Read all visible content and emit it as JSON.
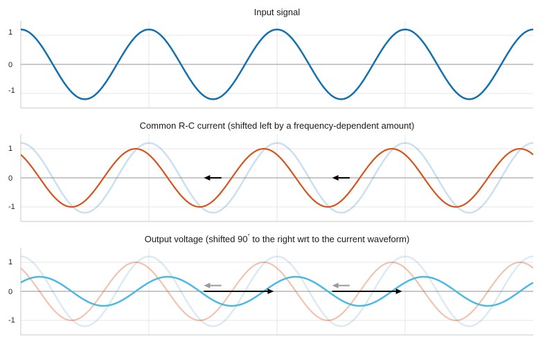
{
  "colors": {
    "input": "#1070b0",
    "current": "#d95219",
    "output": "#4ab9e6",
    "arrow": "#000000",
    "ghost_arrow": "#999999",
    "grid": "#e6e6e6",
    "zero_line": "#a6a6a6",
    "axes": "#c8c8c8"
  },
  "chart_data": [
    {
      "type": "line",
      "title": "Input signal",
      "xlim": [
        0,
        25.13
      ],
      "ylim": [
        -1.5,
        1.5
      ],
      "yticks": [
        1,
        0,
        -1
      ],
      "ytick_labels": [
        "1",
        "0",
        "-1"
      ],
      "xgrid": [
        6.28,
        12.57,
        18.85
      ],
      "grid": true,
      "series": [
        {
          "role": "input",
          "function": "cos",
          "amplitude": 1.2,
          "phase_shift": 0,
          "opacity": 1,
          "stroke": 2.5
        }
      ],
      "arrows": []
    },
    {
      "type": "line",
      "title": "Common R-C current (shifted left by a frequency-dependent amount)",
      "xlim": [
        0,
        25.13
      ],
      "ylim": [
        -1.5,
        1.5
      ],
      "yticks": [
        1,
        0,
        -1
      ],
      "ytick_labels": [
        "1",
        "0",
        "-1"
      ],
      "xgrid": [
        6.28,
        12.57,
        18.85
      ],
      "grid": true,
      "series": [
        {
          "role": "input",
          "function": "cos",
          "amplitude": 1.2,
          "phase_shift": 0,
          "opacity": 0.22,
          "stroke": 2.5
        },
        {
          "role": "current",
          "function": "cos",
          "amplitude": 1.0,
          "phase_shift": 0.65,
          "opacity": 1,
          "stroke": 2.2
        }
      ],
      "arrows": [
        {
          "x_from": 9.84,
          "x_to": 8.98,
          "y": 0,
          "color": "arrow",
          "opacity": 1
        },
        {
          "x_from": 16.13,
          "x_to": 15.27,
          "y": 0,
          "color": "arrow",
          "opacity": 1
        }
      ]
    },
    {
      "type": "line",
      "title": "Output voltage (shifted 90° to the right wrt to the current waveform)",
      "title_parts": [
        "Output voltage (shifted 90",
        "°",
        " to the right wrt to the current waveform)"
      ],
      "xlim": [
        0,
        25.13
      ],
      "ylim": [
        -1.5,
        1.5
      ],
      "yticks": [
        1,
        0,
        -1
      ],
      "ytick_labels": [
        "1",
        "0",
        "-1"
      ],
      "xgrid": [
        6.28,
        12.57,
        18.85
      ],
      "grid": true,
      "series": [
        {
          "role": "input",
          "function": "cos",
          "amplitude": 1.2,
          "phase_shift": 0,
          "opacity": 0.15,
          "stroke": 2.5
        },
        {
          "role": "current",
          "function": "cos",
          "amplitude": 1.0,
          "phase_shift": 0.65,
          "opacity": 0.35,
          "stroke": 2.2
        },
        {
          "role": "output",
          "function": "cos",
          "amplitude": 0.5,
          "phase_shift": -0.92,
          "opacity": 1,
          "stroke": 2.5
        }
      ],
      "arrows": [
        {
          "x_from": 9.84,
          "x_to": 8.98,
          "y": 0.2,
          "color": "ghost_arrow",
          "opacity": 1
        },
        {
          "x_from": 16.13,
          "x_to": 15.27,
          "y": 0.2,
          "color": "ghost_arrow",
          "opacity": 1
        },
        {
          "x_from": 8.98,
          "x_to": 12.41,
          "y": 0,
          "color": "arrow",
          "opacity": 1
        },
        {
          "x_from": 15.27,
          "x_to": 18.7,
          "y": 0,
          "color": "arrow",
          "opacity": 1
        }
      ]
    }
  ]
}
